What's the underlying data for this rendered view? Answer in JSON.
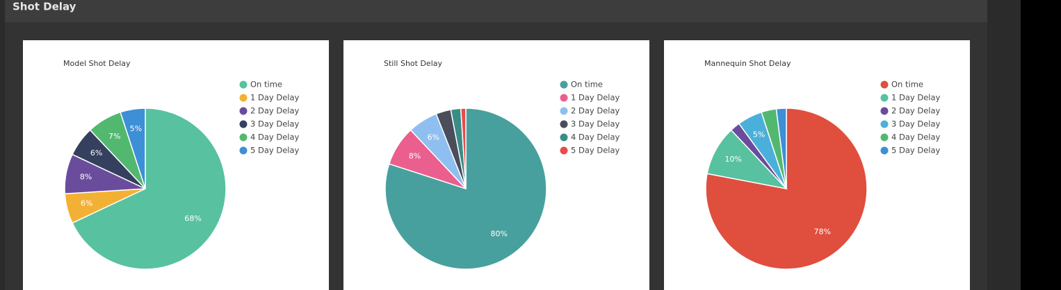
{
  "header": {
    "title": "Shot Delay"
  },
  "chart_data": [
    {
      "type": "pie",
      "title": "Model Shot Delay",
      "categories": [
        "On time",
        "1 Day Delay",
        "2 Day Delay",
        "3 Day Delay",
        "4 Day Delay",
        "5 Day Delay"
      ],
      "values": [
        68,
        6,
        8,
        6,
        7,
        5
      ],
      "value_labels": [
        "68%",
        "6%",
        "8%",
        "6%",
        "7%",
        "5%"
      ],
      "colors": [
        "#57c1a0",
        "#f2b134",
        "#6a4c9c",
        "#34405e",
        "#52b86f",
        "#3d8fd6"
      ]
    },
    {
      "type": "pie",
      "title": "Still Shot Delay",
      "categories": [
        "On time",
        "1 Day Delay",
        "2 Day Delay",
        "3 Day Delay",
        "4 Day Delay",
        "5 Day Delay"
      ],
      "values": [
        80,
        8,
        6,
        3,
        2,
        1
      ],
      "value_labels": [
        "80%",
        "8%",
        "6%",
        null,
        null,
        null
      ],
      "colors": [
        "#48a09e",
        "#ea5f8e",
        "#8fbff0",
        "#4a4d5a",
        "#3a8c86",
        "#e84c4c"
      ]
    },
    {
      "type": "pie",
      "title": "Mannequin Shot Delay",
      "categories": [
        "On time",
        "1 Day Delay",
        "2 Day Delay",
        "3 Day Delay",
        "4 Day Delay",
        "5 Day Delay"
      ],
      "values": [
        78,
        10,
        2,
        5,
        3,
        2
      ],
      "value_labels": [
        "78%",
        "10%",
        null,
        "5%",
        null,
        null
      ],
      "colors": [
        "#e04e3d",
        "#57c1a0",
        "#6a4c9c",
        "#4bb0d9",
        "#52b86f",
        "#3d8fd6"
      ]
    }
  ]
}
